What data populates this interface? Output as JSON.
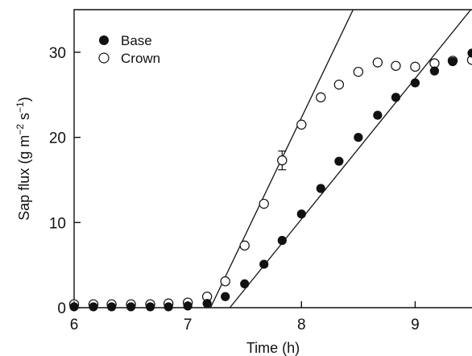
{
  "chart_data": {
    "type": "scatter",
    "title": "",
    "xlabel": "Time (h)",
    "ylabel_parts": [
      "Sap flux (g m",
      "−2",
      " s",
      "−1",
      ")"
    ],
    "xlim": [
      6,
      9.5
    ],
    "ylim": [
      0,
      35
    ],
    "xticks": [
      6,
      7,
      8,
      9
    ],
    "yticks": [
      0,
      10,
      20,
      30
    ],
    "grid": false,
    "legend": "top-left",
    "series": [
      {
        "name": "Base",
        "marker": "filled-circle",
        "color": "#111111",
        "points": [
          [
            6.0,
            0.1
          ],
          [
            6.17,
            0.1
          ],
          [
            6.33,
            0.1
          ],
          [
            6.5,
            0.1
          ],
          [
            6.67,
            0.1
          ],
          [
            6.83,
            0.1
          ],
          [
            7.0,
            0.2
          ],
          [
            7.17,
            0.5
          ],
          [
            7.33,
            1.3
          ],
          [
            7.5,
            2.8
          ],
          [
            7.67,
            5.1
          ],
          [
            7.83,
            7.9
          ],
          [
            8.0,
            11.0
          ],
          [
            8.17,
            14.0
          ],
          [
            8.33,
            17.2
          ],
          [
            8.5,
            20.0
          ],
          [
            8.67,
            22.6
          ],
          [
            8.83,
            24.7
          ],
          [
            9.0,
            26.4
          ],
          [
            9.17,
            27.8
          ],
          [
            9.33,
            28.9
          ],
          [
            9.5,
            29.9
          ]
        ],
        "fit_line": [
          [
            7.37,
            0
          ],
          [
            9.55,
            36
          ]
        ]
      },
      {
        "name": "Crown",
        "marker": "open-circle",
        "color": "#111111",
        "points": [
          [
            6.0,
            0.4
          ],
          [
            6.17,
            0.4
          ],
          [
            6.33,
            0.4
          ],
          [
            6.5,
            0.4
          ],
          [
            6.67,
            0.4
          ],
          [
            6.83,
            0.5
          ],
          [
            7.0,
            0.6
          ],
          [
            7.17,
            1.3
          ],
          [
            7.33,
            3.1
          ],
          [
            7.5,
            7.3
          ],
          [
            7.67,
            12.2
          ],
          [
            7.83,
            17.3
          ],
          [
            8.0,
            21.5
          ],
          [
            8.17,
            24.7
          ],
          [
            8.33,
            26.2
          ],
          [
            8.5,
            27.7
          ],
          [
            8.67,
            28.8
          ],
          [
            8.83,
            28.4
          ],
          [
            9.0,
            28.3
          ],
          [
            9.17,
            28.7
          ],
          [
            9.33,
            29.0
          ],
          [
            9.5,
            29.1
          ]
        ],
        "error_bars": [
          [
            7.83,
            16.2,
            18.4
          ]
        ],
        "fit_line": [
          [
            7.2,
            0
          ],
          [
            8.49,
            36
          ]
        ]
      }
    ]
  }
}
